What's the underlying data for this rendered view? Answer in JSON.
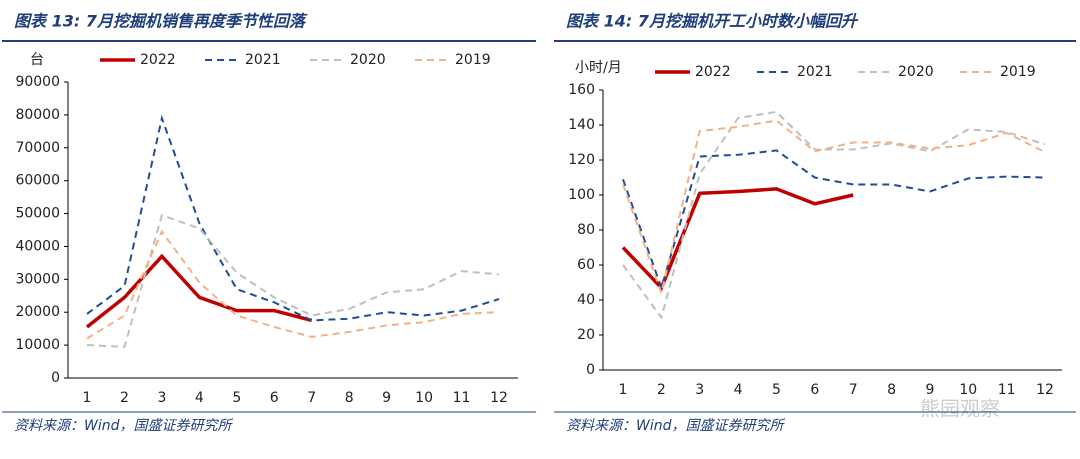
{
  "chart_data": [
    {
      "type": "line",
      "title": "图表 13:  7月挖掘机销售再度季节性回落",
      "y_label": "台",
      "categories": [
        1,
        2,
        3,
        4,
        5,
        6,
        7,
        8,
        9,
        10,
        11,
        12
      ],
      "ylim": [
        0,
        90000
      ],
      "yticks": [
        0,
        10000,
        20000,
        30000,
        40000,
        50000,
        60000,
        70000,
        80000,
        90000
      ],
      "series": [
        {
          "name": "2022",
          "color": "#c00000",
          "dash": "solid",
          "values": [
            15500,
            24500,
            37000,
            24500,
            20500,
            20500,
            17500,
            null,
            null,
            null,
            null,
            null
          ]
        },
        {
          "name": "2021",
          "color": "#1f4e99",
          "dash": "dashed",
          "values": [
            19500,
            28000,
            79000,
            47000,
            27000,
            23000,
            17500,
            18000,
            20000,
            19000,
            20500,
            24000
          ]
        },
        {
          "name": "2020",
          "color": "#bfbfbf",
          "dash": "dashed",
          "values": [
            10000,
            9500,
            49500,
            45500,
            32000,
            24500,
            19000,
            21000,
            26000,
            27000,
            32500,
            31500
          ]
        },
        {
          "name": "2019",
          "color": "#f4b183",
          "dash": "dashed",
          "values": [
            12000,
            19000,
            44500,
            29000,
            19000,
            15500,
            12500,
            14000,
            16000,
            17000,
            19500,
            20000
          ]
        }
      ],
      "source": "资料来源：Wind，国盛证券研究所"
    },
    {
      "type": "line",
      "title": "图表 14:  7月挖掘机开工小时数小幅回升",
      "y_label": "小时/月",
      "categories": [
        1,
        2,
        3,
        4,
        5,
        6,
        7,
        8,
        9,
        10,
        11,
        12
      ],
      "ylim": [
        0,
        160
      ],
      "yticks": [
        0,
        20,
        40,
        60,
        80,
        100,
        120,
        140,
        160
      ],
      "series": [
        {
          "name": "2022",
          "color": "#c00000",
          "dash": "solid",
          "values": [
            70,
            47,
            101,
            102,
            103.5,
            95,
            100,
            null,
            null,
            null,
            null,
            null
          ]
        },
        {
          "name": "2021",
          "color": "#1f4e99",
          "dash": "dashed",
          "values": [
            109,
            47,
            122,
            123,
            125.5,
            110,
            106,
            106,
            102,
            109.5,
            110.5,
            110
          ]
        },
        {
          "name": "2020",
          "color": "#bfbfbf",
          "dash": "dashed",
          "values": [
            60,
            30,
            112,
            144,
            147.5,
            126,
            126,
            129.5,
            125,
            137.5,
            136,
            129
          ]
        },
        {
          "name": "2019",
          "color": "#f4b183",
          "dash": "dashed",
          "values": [
            106,
            44,
            136.5,
            139,
            142.5,
            125,
            130,
            130,
            126.5,
            128.5,
            135.5,
            124.5
          ]
        }
      ],
      "source": "资料来源：Wind，国盛证券研究所"
    }
  ],
  "watermark": "熊园观察"
}
